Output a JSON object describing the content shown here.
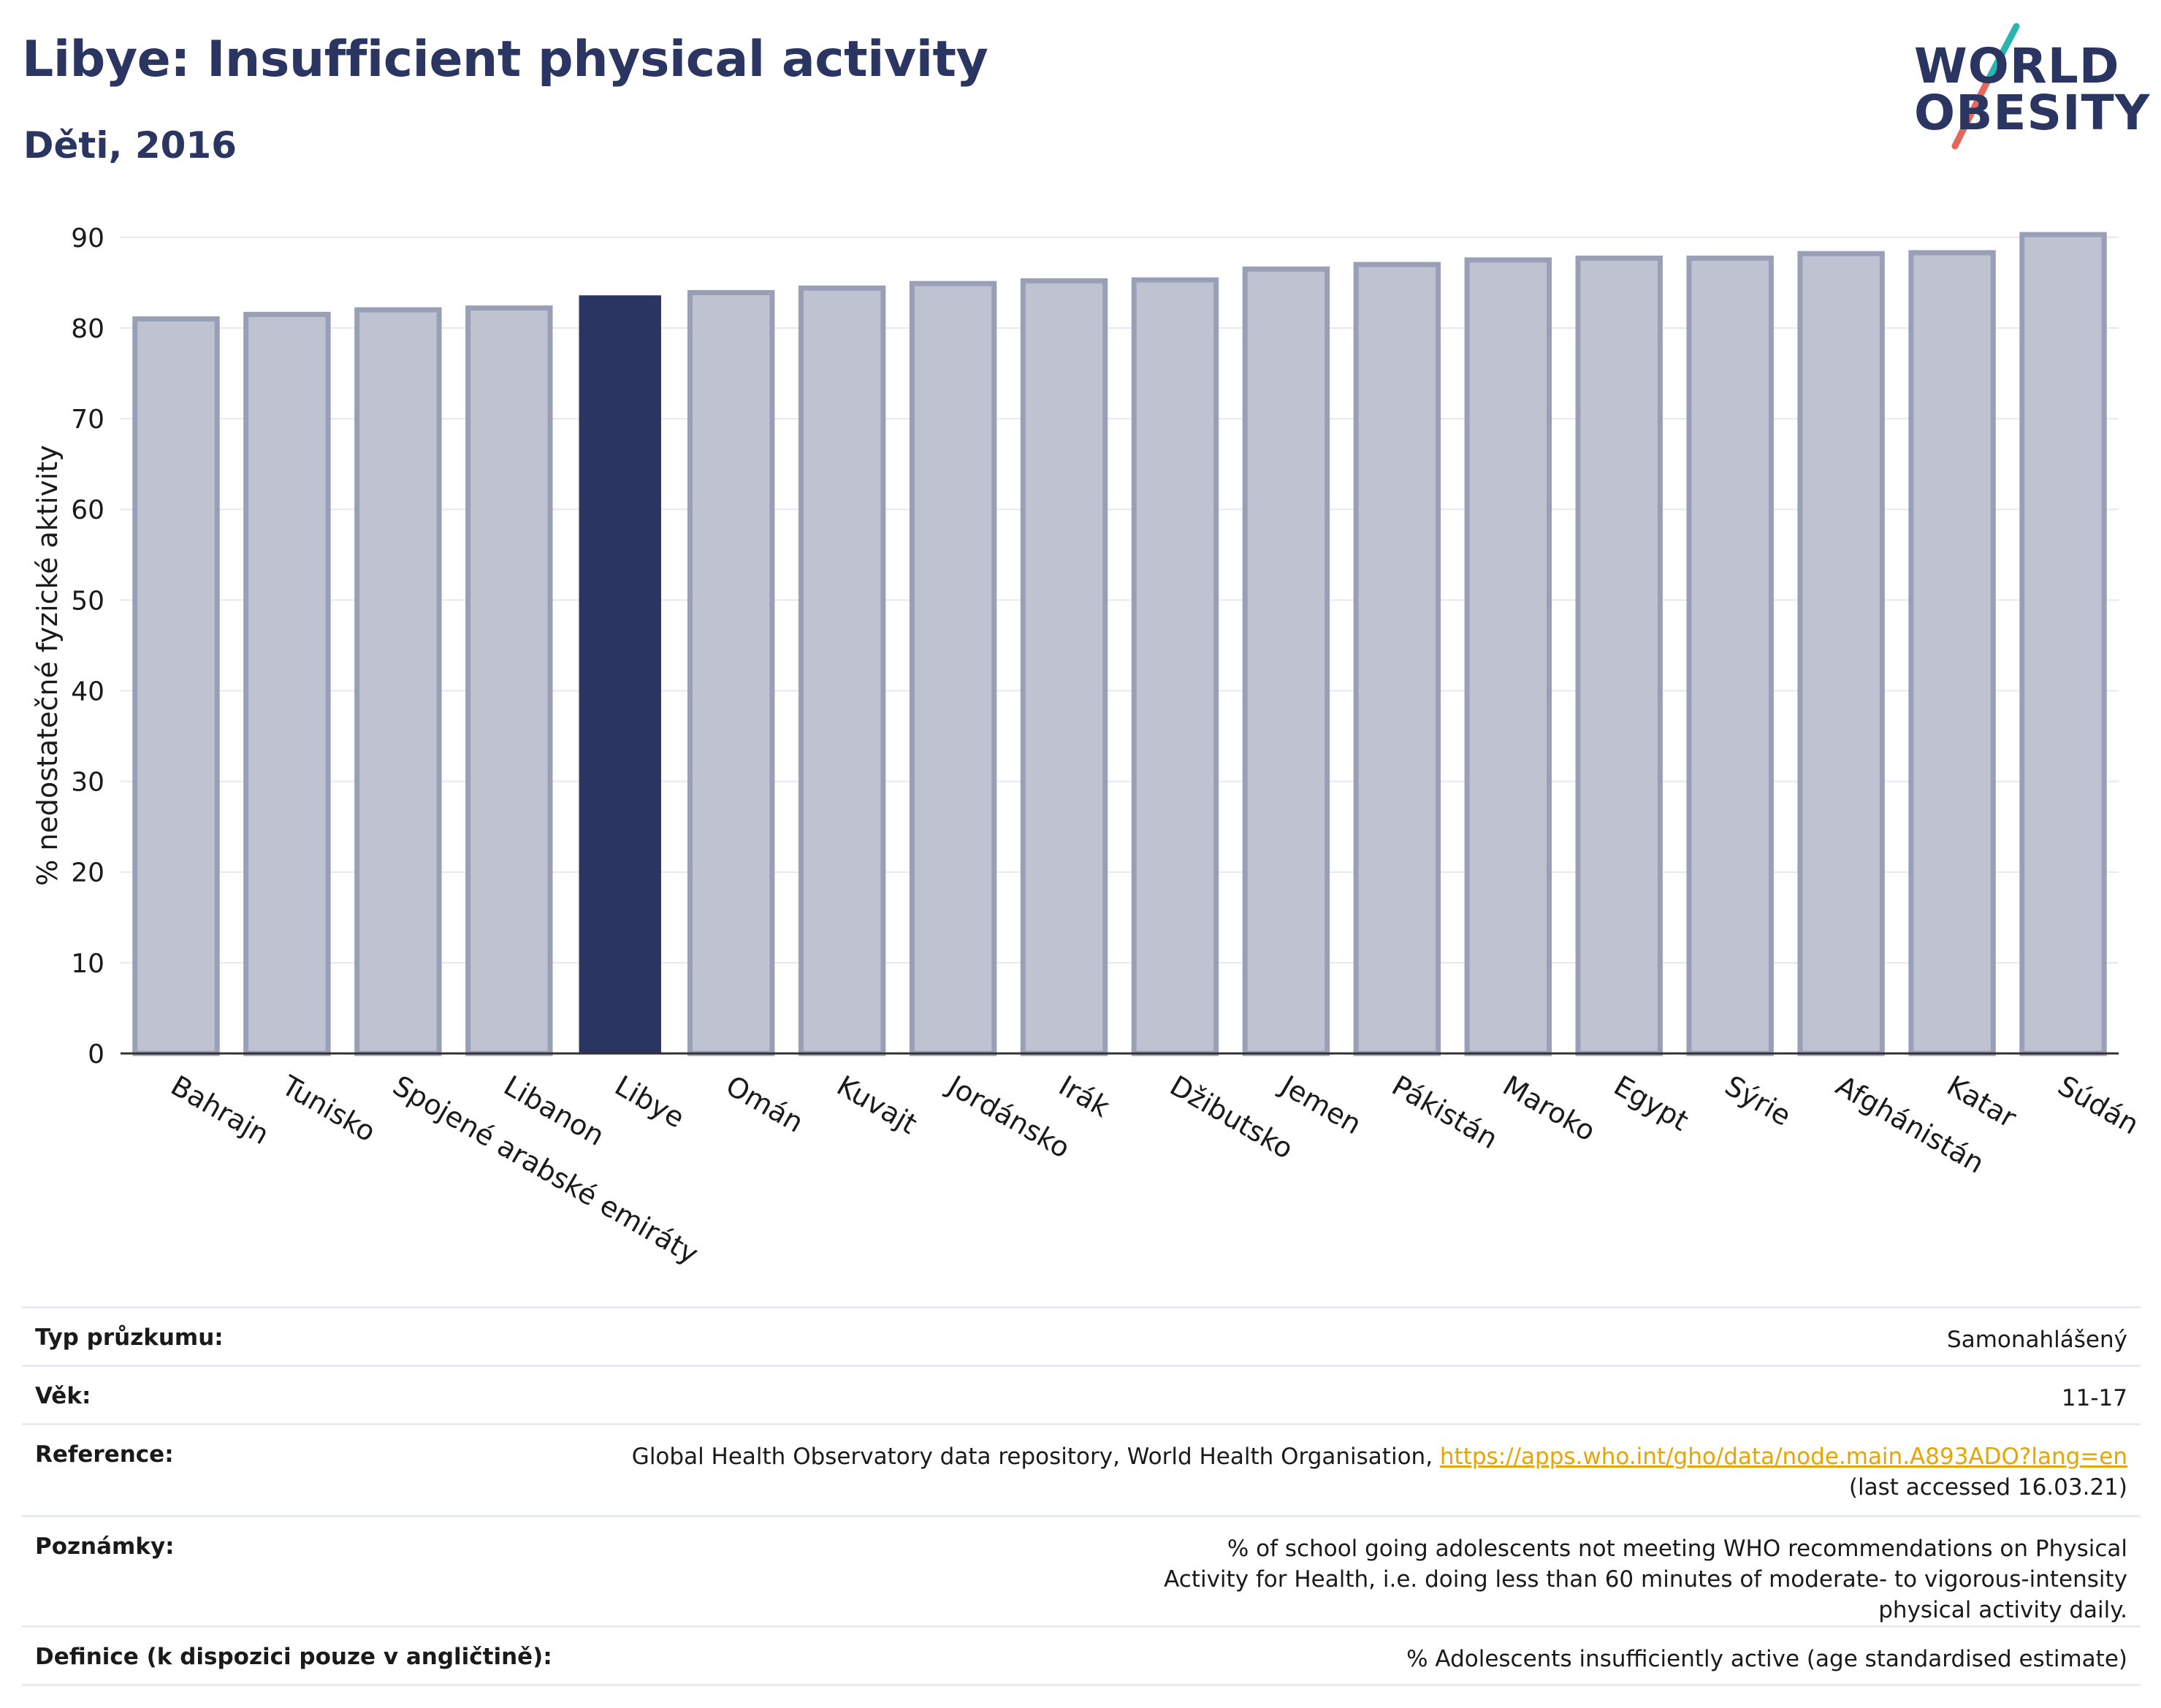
{
  "header": {
    "title": "Libye: Insufficient physical activity",
    "subtitle": "Děti, 2016"
  },
  "logo": {
    "line1": "WORLD",
    "line2": "OBESITY",
    "accent_teal": "#2bb5b0",
    "accent_coral": "#e5685a"
  },
  "colors": {
    "bar_default": "#bfc2d0",
    "bar_default_border": "#9a9fb8",
    "bar_highlight": "#2b3561",
    "link": "#e8a400"
  },
  "chart_data": {
    "type": "bar",
    "categories": [
      "Bahrajn",
      "Tunisko",
      "Spojené arabské emiráty",
      "Libanon",
      "Libye",
      "Omán",
      "Kuvajt",
      "Jordánsko",
      "Irák",
      "Džibutsko",
      "Jemen",
      "Pákistán",
      "Maroko",
      "Egypt",
      "Sýrie",
      "Afghánistán",
      "Katar",
      "Súdán"
    ],
    "values": [
      81.0,
      81.5,
      82.0,
      82.2,
      83.6,
      83.9,
      84.4,
      84.9,
      85.2,
      85.3,
      86.5,
      87.0,
      87.5,
      87.7,
      87.7,
      88.2,
      88.3,
      90.3
    ],
    "highlight": "Libye",
    "ylabel": "% nedostatečné fyzické aktivity",
    "xlabel": "",
    "ylim": [
      0,
      92
    ],
    "yticks": [
      0,
      10,
      20,
      30,
      40,
      50,
      60,
      70,
      80,
      90
    ],
    "grid": true
  },
  "info": {
    "rows": [
      {
        "label": "Typ průzkumu:",
        "value": "Samonahlášený"
      },
      {
        "label": "Věk:",
        "value": "11-17"
      },
      {
        "label": "Reference:",
        "value_prefix": "Global Health Observatory data repository, World Health Organisation, ",
        "link": "https://apps.who.int/gho/data/node.main.A893ADO?lang=en",
        "value_suffix": "(last accessed 16.03.21)"
      },
      {
        "label": "Poznámky:",
        "value": "% of school going adolescents not meeting WHO recommendations on Physical Activity for Health, i.e. doing less than 60 minutes of moderate- to vigorous-intensity physical activity daily."
      },
      {
        "label": "Definice (k dispozici pouze v angličtině):",
        "value": "% Adolescents insufficiently active (age standardised estimate)"
      }
    ]
  }
}
